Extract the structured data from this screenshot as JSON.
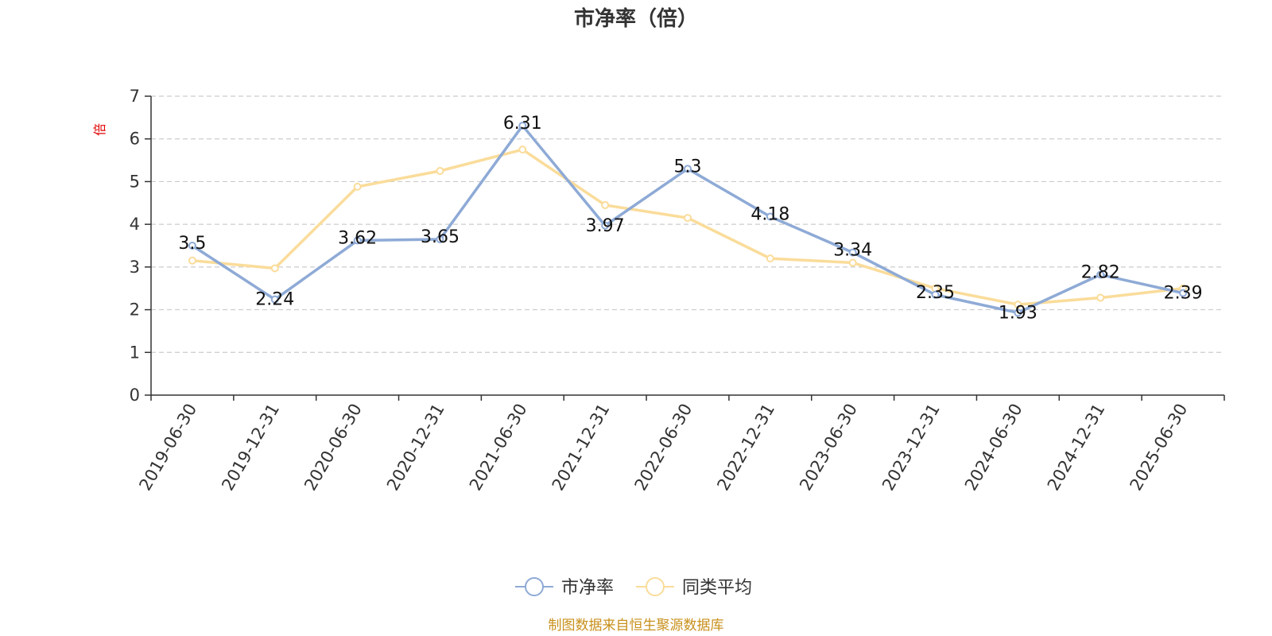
{
  "chart_data": {
    "type": "line",
    "title": "市净率（倍）",
    "ylabel": "倍",
    "ylim": [
      0,
      7
    ],
    "yticks": [
      "0",
      "1",
      "2",
      "3",
      "4",
      "5",
      "6",
      "7"
    ],
    "grid": true,
    "legend_position": "bottom-center",
    "categories": [
      "2019-06-30",
      "2019-12-31",
      "2020-06-30",
      "2020-12-31",
      "2021-06-30",
      "2021-12-31",
      "2022-06-30",
      "2022-12-31",
      "2023-06-30",
      "2023-12-31",
      "2024-06-30",
      "2024-12-31",
      "2025-06-30"
    ],
    "series": [
      {
        "name": "市净率",
        "color": "#8eaad6",
        "values": [
          3.5,
          2.24,
          3.62,
          3.65,
          6.31,
          3.97,
          5.3,
          4.18,
          3.34,
          2.35,
          1.93,
          2.82,
          2.39
        ],
        "labels": [
          "3.5",
          "2.24",
          "3.62",
          "3.65",
          "6.31",
          "3.97",
          "5.3",
          "4.18",
          "3.34",
          "2.35",
          "1.93",
          "2.82",
          "2.39"
        ]
      },
      {
        "name": "同类平均",
        "color": "#fadc9a",
        "values": [
          3.15,
          2.97,
          4.88,
          5.25,
          5.75,
          4.45,
          4.15,
          3.2,
          3.1,
          2.5,
          2.12,
          2.28,
          2.5
        ]
      }
    ]
  },
  "footer": {
    "source": "制图数据来自恒生聚源数据库"
  }
}
